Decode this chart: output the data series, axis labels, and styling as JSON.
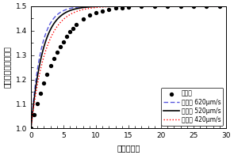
{
  "title": "",
  "xlabel": "時間（秒）",
  "ylabel": "細胞体積（相対値）",
  "xlim": [
    0,
    30
  ],
  "ylim": [
    1.0,
    1.5
  ],
  "yticks": [
    1.0,
    1.1,
    1.2,
    1.3,
    1.4,
    1.5
  ],
  "xticks": [
    0,
    5,
    10,
    15,
    20,
    25,
    30
  ],
  "V_inf": 1.5,
  "V0": 1.0,
  "k_520": 0.55,
  "Pf_620": 620,
  "Pf_520": 520,
  "Pf_420": 420,
  "color_620": "#5555dd",
  "color_520": "#000000",
  "color_420": "#ff0000",
  "legend_labels": [
    "実測値",
    "理論値 620μm/s",
    "理論値 520μm/s",
    "理論値 420μm/s"
  ],
  "marker_times": [
    0.0,
    0.5,
    1.0,
    1.5,
    2.0,
    2.5,
    3.0,
    3.5,
    4.0,
    4.5,
    5.0,
    5.5,
    6.0,
    6.5,
    7.0,
    8.0,
    9.0,
    10.0,
    11.0,
    12.0,
    13.0,
    14.0,
    15.0,
    17.0,
    19.0,
    21.0,
    23.0,
    25.0,
    27.0,
    29.0
  ],
  "marker_values": [
    1.0,
    1.055,
    1.1,
    1.145,
    1.185,
    1.22,
    1.255,
    1.285,
    1.31,
    1.335,
    1.355,
    1.375,
    1.395,
    1.41,
    1.425,
    1.447,
    1.462,
    1.474,
    1.481,
    1.487,
    1.491,
    1.494,
    1.496,
    1.498,
    1.499,
    1.4993,
    1.4996,
    1.4998,
    1.4999,
    1.4999
  ]
}
